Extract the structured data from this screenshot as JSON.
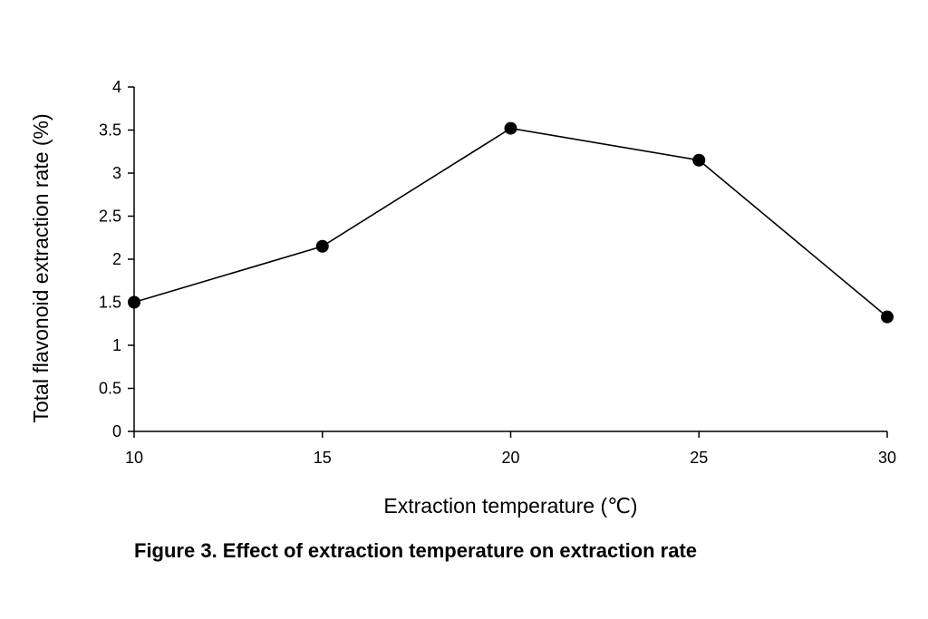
{
  "chart_data": {
    "type": "line",
    "title": "",
    "xlabel": "Extraction temperature (℃)",
    "ylabel": "Total flavonoid extraction rate (%)",
    "x": [
      10,
      15,
      20,
      25,
      30
    ],
    "series": [
      {
        "values": [
          1.5,
          2.15,
          3.52,
          3.15,
          1.33
        ]
      }
    ],
    "xlim": [
      10,
      30
    ],
    "ylim": [
      0,
      4
    ],
    "xticks": [
      "10",
      "15",
      "20",
      "25",
      "30"
    ],
    "yticks": [
      "0",
      "0.5",
      "1",
      "1.5",
      "2",
      "2.5",
      "3",
      "3.5",
      "4"
    ],
    "grid": false,
    "legend": "none",
    "line_color": "#000000",
    "marker": "filled-circle"
  },
  "caption": "Figure 3. Effect of extraction temperature on extraction rate"
}
